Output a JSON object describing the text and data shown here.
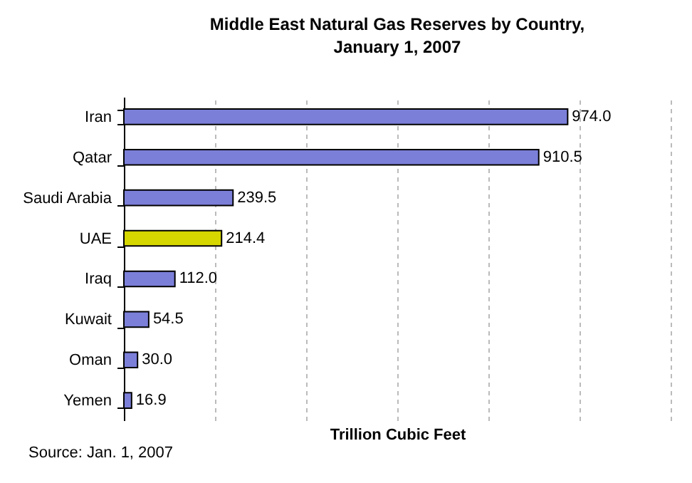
{
  "chart_data": {
    "type": "bar",
    "orientation": "horizontal",
    "title": "Middle East Natural Gas Reserves by Country, January 1, 2007",
    "xlabel": "Trillion Cubic Feet",
    "categories": [
      "Iran",
      "Qatar",
      "Saudi Arabia",
      "UAE",
      "Iraq",
      "Kuwait",
      "Oman",
      "Yemen"
    ],
    "values": [
      974.0,
      910.5,
      239.5,
      214.4,
      112.0,
      54.5,
      30.0,
      16.9
    ],
    "value_labels": [
      "974.0",
      "910.5",
      "239.5",
      "214.4",
      "112.0",
      "54.5",
      "30.0",
      "16.9"
    ],
    "colors": [
      "#7b7fd8",
      "#7b7fd8",
      "#7b7fd8",
      "#d6d600",
      "#7b7fd8",
      "#7b7fd8",
      "#7b7fd8",
      "#7b7fd8"
    ],
    "xlim": [
      0,
      1200
    ],
    "xticks": [
      {
        "value": 0,
        "label": null
      },
      {
        "value": 200,
        "label": null
      },
      {
        "value": 400,
        "label": null
      },
      {
        "value": 600,
        "label": null
      },
      {
        "value": 800,
        "label": null
      },
      {
        "value": 1000,
        "label": null
      },
      {
        "value": 1200,
        "label": null
      }
    ],
    "grid": "x",
    "tick_labels": "y",
    "annotations": [
      "Source: Jan. 1, 2007"
    ]
  }
}
